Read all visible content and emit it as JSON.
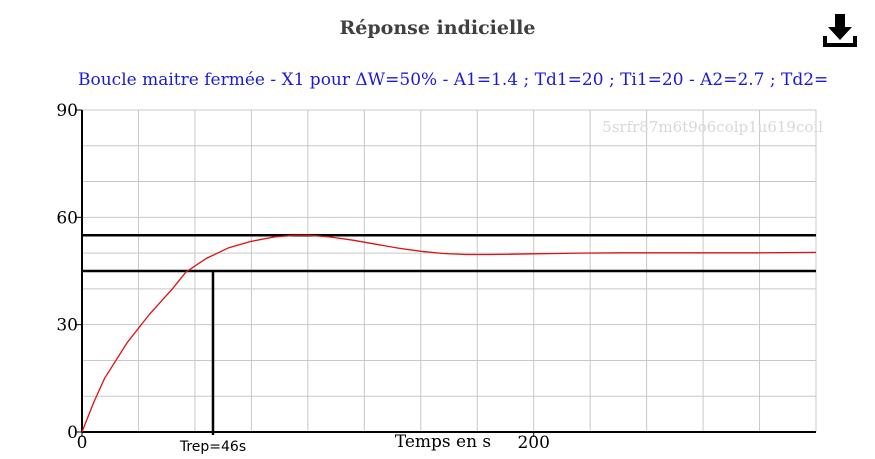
{
  "page": {
    "title": "Réponse indicielle",
    "download_icon": "download-icon"
  },
  "chart_data": {
    "type": "line",
    "title": "Boucle maitre fermée - X1 pour ΔW=50% - A1=1.4 ; Td1=20 ; Ti1=20 - A2=2.7 ; Td2=",
    "watermark": "5srfr87m6t9o6colp1u619coil",
    "xlabel": "Temps en s",
    "ylabel": "",
    "xlim": [
      0,
      325
    ],
    "ylim": [
      0,
      90
    ],
    "x_ticks": [
      0,
      200
    ],
    "y_ticks": [
      0,
      30,
      60,
      90
    ],
    "grid": true,
    "colors": {
      "curve": "#e01010",
      "lines": "#000000",
      "grid": "#c8c8c8",
      "subtitle": "#1a1adc"
    },
    "series": [
      {
        "x": [
          0,
          5,
          10,
          20,
          30,
          40,
          46,
          55,
          65,
          75,
          85,
          95,
          100,
          110,
          120,
          130,
          140,
          150,
          160,
          170,
          180,
          190,
          200,
          210,
          220,
          240,
          260,
          280,
          300,
          325
        ],
        "values": [
          0,
          8,
          15,
          25,
          33,
          40,
          44.7,
          48.5,
          51.5,
          53.3,
          54.5,
          55,
          55,
          54.5,
          53.6,
          52.5,
          51.4,
          50.5,
          49.9,
          49.6,
          49.6,
          49.7,
          49.8,
          49.9,
          50,
          50.1,
          50.1,
          50.1,
          50.1,
          50.2
        ]
      }
    ],
    "reference_lines": [
      {
        "axis": "y",
        "value": 55
      },
      {
        "axis": "y",
        "value": 45
      },
      {
        "axis": "x",
        "value": 58
      }
    ],
    "annotations": [
      {
        "text": "Trep=46s"
      }
    ]
  }
}
